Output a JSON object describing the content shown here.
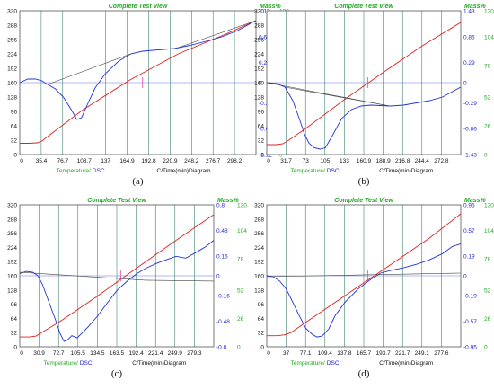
{
  "colors": {
    "temperature": "#e02020",
    "dsc": "#2233dd",
    "grid": "#1a6b55",
    "baseline": "#444444",
    "marker": "#dd44aa"
  },
  "chart_data": [
    {
      "type": "line",
      "panel": "(a)",
      "title": "Complete Test View",
      "mass_label": "Mass%",
      "legend_temperature": "Temperature/",
      "legend_dsc": "DSC",
      "xlabel": "C/Time(min)Diagram",
      "x_ticks": [
        "0",
        "35.4",
        "76.7",
        "108.7",
        "137",
        "164.9",
        "192.8",
        "220.9",
        "248.2",
        "276.7",
        "298.2"
      ],
      "y_left_ticks": [
        "0",
        "32",
        "64",
        "96",
        "128",
        "160",
        "192",
        "224",
        "256",
        "288",
        "320"
      ],
      "y_dsc_ticks": [
        "1.12",
        "0.67",
        "0.22",
        "0",
        "-0.22",
        "-0.67",
        "-1.12"
      ],
      "y_mass_ticks": [
        "130",
        "104",
        "78",
        "52",
        "26",
        "0"
      ],
      "xlim": [
        0,
        298.2
      ],
      "ylim": [
        0,
        320
      ],
      "series": [
        {
          "role": "temperature",
          "x": [
            0,
            12,
            22,
            28,
            35,
            80,
            140,
            200,
            260,
            298.2
          ],
          "y": [
            25,
            25,
            26,
            30,
            40,
            100,
            167,
            224,
            268,
            298
          ]
        },
        {
          "role": "dsc",
          "x": [
            0,
            10,
            20,
            28,
            35,
            45,
            55,
            65,
            72,
            78,
            85,
            95,
            108,
            125,
            140,
            155,
            175,
            195,
            215,
            235,
            255,
            275,
            298
          ],
          "y": [
            160,
            168,
            168,
            164,
            156,
            146,
            128,
            100,
            78,
            82,
            110,
            148,
            180,
            208,
            224,
            230,
            233,
            236,
            243,
            252,
            262,
            276,
            298
          ]
        },
        {
          "role": "baseline",
          "x": [
            35,
            140
          ],
          "y": [
            156,
            224
          ]
        },
        {
          "role": "baseline",
          "x": [
            200,
            298.2
          ],
          "y": [
            238,
            298
          ]
        }
      ]
    },
    {
      "type": "line",
      "panel": "(b)",
      "title": "Complete Test View",
      "mass_label": "Mass%",
      "legend_temperature": "Temperature/",
      "legend_dsc": "DSC",
      "xlabel": "C/Time(min)Diagram",
      "x_ticks": [
        "0",
        "31.7",
        "73",
        "105",
        "133",
        "160.9",
        "188.9",
        "216.8",
        "244.4",
        "272.8"
      ],
      "y_left_ticks": [
        "0",
        "32",
        "64",
        "96",
        "128",
        "160",
        "192",
        "224",
        "256",
        "288",
        "320"
      ],
      "y_dsc_ticks": [
        "1.43",
        "0.86",
        "0.29",
        "0",
        "-0.29",
        "-0.86",
        "-1.43"
      ],
      "y_mass_ticks": [
        "130",
        "104",
        "78",
        "52",
        "26",
        "0"
      ],
      "xlim": [
        0,
        298
      ],
      "ylim": [
        0,
        320
      ],
      "series": [
        {
          "role": "temperature",
          "x": [
            0,
            15,
            25,
            31.7,
            60,
            120,
            180,
            240,
            298
          ],
          "y": [
            22,
            22,
            24,
            30,
            58,
            123,
            184,
            243,
            294
          ]
        },
        {
          "role": "dsc",
          "x": [
            0,
            15,
            28,
            40,
            50,
            58,
            65,
            73,
            82,
            90,
            100,
            115,
            130,
            145,
            160,
            175,
            190,
            210,
            230,
            250,
            270,
            285,
            298
          ],
          "y": [
            160,
            158,
            150,
            120,
            80,
            45,
            25,
            15,
            12,
            15,
            40,
            80,
            100,
            108,
            110,
            109,
            108,
            110,
            115,
            120,
            128,
            140,
            150
          ]
        },
        {
          "role": "baseline",
          "x": [
            0,
            188.9
          ],
          "y": [
            160,
            108
          ]
        },
        {
          "role": "baseline",
          "x": [
            28,
            188.9
          ],
          "y": [
            150,
            108
          ]
        }
      ]
    },
    {
      "type": "line",
      "panel": "(c)",
      "title": "Complete Test View",
      "mass_label": "Mass%",
      "legend_temperature": "Temperature/",
      "legend_dsc": "DSC",
      "xlabel": "C/Time(min)Diagram",
      "x_ticks": [
        "0",
        "30.9",
        "72.7",
        "105.5",
        "134.5",
        "163.5",
        "192.4",
        "221.4",
        "249.9",
        "279.3"
      ],
      "y_left_ticks": [
        "0",
        "32",
        "64",
        "96",
        "128",
        "160",
        "192",
        "224",
        "256",
        "288",
        "320"
      ],
      "y_dsc_ticks": [
        "0.8",
        "0.48",
        "0.16",
        "0",
        "-0.16",
        "-0.48",
        "-0.8"
      ],
      "y_mass_ticks": [
        "130",
        "104",
        "78",
        "52",
        "26",
        "0"
      ],
      "xlim": [
        0,
        298
      ],
      "ylim": [
        0,
        320
      ],
      "series": [
        {
          "role": "temperature",
          "x": [
            0,
            15,
            25,
            30.9,
            60,
            120,
            180,
            240,
            298
          ],
          "y": [
            22,
            22,
            24,
            30,
            55,
            115,
            178,
            240,
            298
          ]
        },
        {
          "role": "dsc",
          "x": [
            0,
            10,
            20,
            28,
            35,
            45,
            55,
            62,
            68,
            73,
            80,
            88,
            95,
            105,
            120,
            135,
            150,
            165,
            180,
            195,
            210,
            225,
            240,
            255,
            270,
            285,
            298
          ],
          "y": [
            165,
            170,
            168,
            160,
            140,
            100,
            60,
            30,
            12,
            15,
            25,
            20,
            30,
            45,
            70,
            100,
            128,
            148,
            165,
            178,
            188,
            196,
            204,
            200,
            212,
            225,
            240
          ]
        },
        {
          "role": "baseline",
          "x": [
            0,
            192.4
          ],
          "y": [
            168,
            150
          ]
        },
        {
          "role": "baseline",
          "x": [
            192.4,
            298
          ],
          "y": [
            150,
            148
          ]
        }
      ]
    },
    {
      "type": "line",
      "panel": "(d)",
      "title": "Complete Test View",
      "mass_label": "Mass%",
      "legend_temperature": "Temperature/",
      "legend_dsc": "DSC",
      "xlabel": "C/Time(min)Diagram",
      "x_ticks": [
        "0",
        "37",
        "77.1",
        "109.4",
        "137.8",
        "165.7",
        "193.7",
        "221.7",
        "249.1",
        "277.6"
      ],
      "y_left_ticks": [
        "0",
        "32",
        "64",
        "96",
        "128",
        "160",
        "192",
        "224",
        "256",
        "288",
        "320"
      ],
      "y_dsc_ticks": [
        "0.95",
        "0.57",
        "0.19",
        "0",
        "-0.19",
        "-0.57",
        "-0.95"
      ],
      "y_mass_ticks": [
        "130",
        "104",
        "78",
        "52",
        "26",
        "0"
      ],
      "xlim": [
        0,
        298
      ],
      "ylim": [
        0,
        320
      ],
      "series": [
        {
          "role": "temperature",
          "x": [
            0,
            15,
            28,
            37,
            70,
            130,
            190,
            250,
            298
          ],
          "y": [
            25,
            25,
            27,
            32,
            65,
            125,
            185,
            245,
            300
          ]
        },
        {
          "role": "dsc",
          "x": [
            0,
            10,
            20,
            30,
            40,
            50,
            60,
            70,
            77,
            85,
            95,
            105,
            120,
            140,
            160,
            175,
            190,
            210,
            230,
            250,
            270,
            285,
            298
          ],
          "y": [
            160,
            158,
            148,
            130,
            100,
            70,
            42,
            28,
            22,
            24,
            40,
            70,
            100,
            130,
            152,
            166,
            172,
            178,
            186,
            196,
            210,
            226,
            232
          ]
        },
        {
          "role": "baseline",
          "x": [
            0,
            298
          ],
          "y": [
            158,
            166
          ]
        }
      ]
    }
  ]
}
